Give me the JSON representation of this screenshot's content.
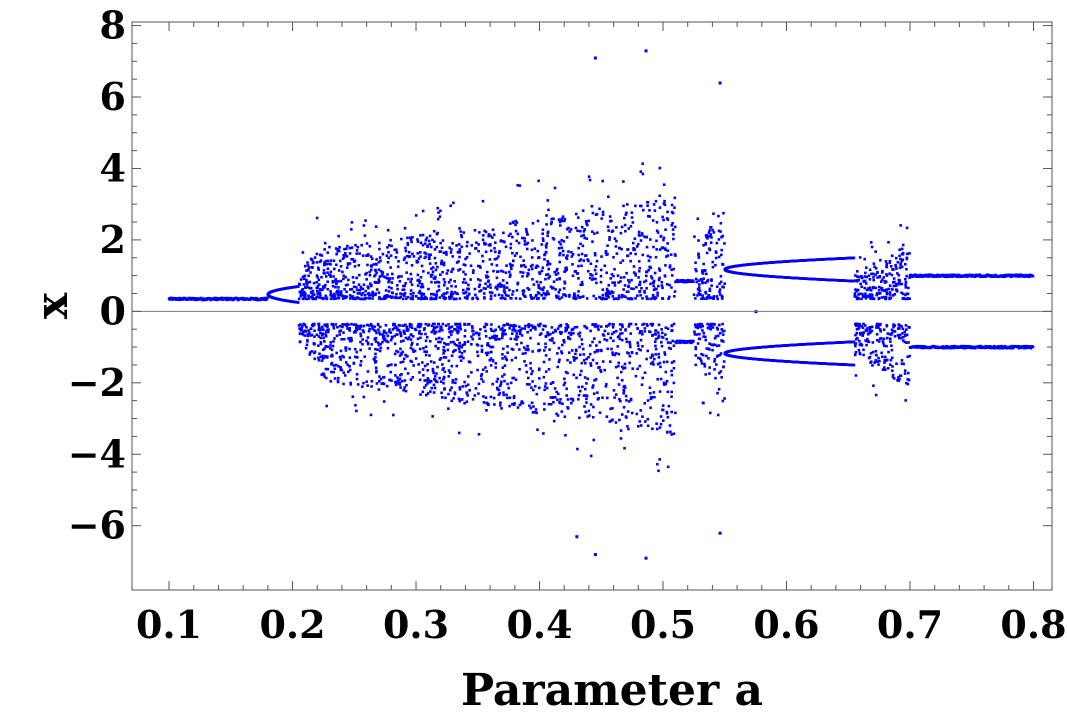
{
  "chart_data": {
    "type": "scatter",
    "title": "",
    "xlabel": "Parameter  a",
    "ylabel": "x",
    "xlim": [
      0.07,
      0.815
    ],
    "ylim": [
      -7.8,
      8.1
    ],
    "xticks": [
      0.1,
      0.2,
      0.3,
      0.4,
      0.5,
      0.6,
      0.7,
      0.8
    ],
    "xtick_labels": [
      "0.1",
      "0.2",
      "0.3",
      "0.4",
      "0.5",
      "0.6",
      "0.7",
      "0.8"
    ],
    "yticks": [
      -6,
      -4,
      -2,
      0,
      2,
      4,
      6,
      8
    ],
    "ytick_labels": [
      "−6",
      "−4",
      "−2",
      "0",
      "2",
      "4",
      "6",
      "8"
    ],
    "grid": false,
    "series": [
      {
        "color": "#0000ff",
        "description_points": "bifurcation diagram; representative sampled points",
        "regimes": [
          {
            "a_range": [
              0.1,
              0.18
            ],
            "x": [
              0.35
            ]
          },
          {
            "a_range": [
              0.18,
              0.205
            ],
            "x_pairs": [
              [
                0.25,
                0.7
              ]
            ]
          },
          {
            "a_range": [
              0.205,
              0.22
            ],
            "x_band": [
              -1.6,
              1.9
            ]
          },
          {
            "a_range": [
              0.22,
              0.51
            ],
            "x_band": [
              -3.5,
              3.2
            ],
            "outliers": [
              [
                0.445,
                7.1
              ],
              [
                0.486,
                7.3
              ],
              [
                0.486,
                -6.9
              ],
              [
                0.445,
                -6.8
              ],
              [
                0.43,
                -6.3
              ],
              [
                0.575,
                0
              ]
            ]
          },
          {
            "a_range": [
              0.51,
              0.525
            ],
            "x": [
              0.85,
              -0.85
            ]
          },
          {
            "a_range": [
              0.525,
              0.55
            ],
            "x_band": [
              -2.6,
              3.0
            ],
            "outliers": [
              [
                0.546,
                6.4
              ],
              [
                0.546,
                -6.2
              ]
            ]
          },
          {
            "a_range": [
              0.55,
              0.655
            ],
            "x_pairs": [
              [
                0.85,
                1.5
              ],
              [
                -0.85,
                -1.5
              ]
            ]
          },
          {
            "a_range": [
              0.655,
              0.7
            ],
            "x_band": [
              -2.2,
              1.9
            ]
          },
          {
            "a_range": [
              0.7,
              0.8
            ],
            "x": [
              1.0,
              -1.0
            ]
          }
        ]
      }
    ]
  }
}
